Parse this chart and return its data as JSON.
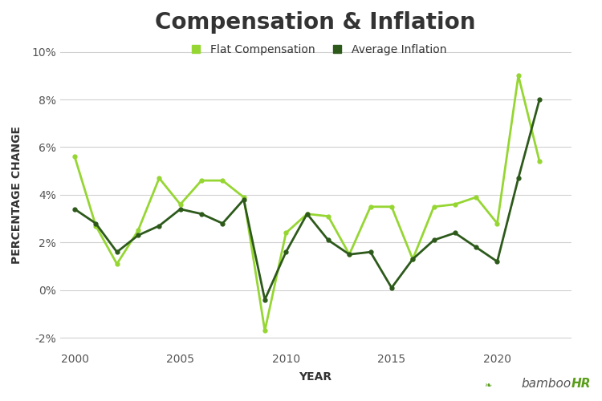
{
  "title": "Compensation & Inflation",
  "xlabel": "YEAR",
  "ylabel": "PERCENTAGE CHANGE",
  "flat_compensation": {
    "years": [
      2000,
      2001,
      2002,
      2003,
      2004,
      2005,
      2006,
      2007,
      2008,
      2009,
      2010,
      2011,
      2012,
      2013,
      2014,
      2015,
      2016,
      2017,
      2018,
      2019,
      2020,
      2021,
      2022
    ],
    "values": [
      5.6,
      2.7,
      1.1,
      2.5,
      4.7,
      3.6,
      4.6,
      4.6,
      3.9,
      -1.7,
      2.4,
      3.2,
      3.1,
      1.5,
      3.5,
      3.5,
      1.3,
      3.5,
      3.6,
      3.9,
      2.8,
      9.0,
      5.4
    ]
  },
  "average_inflation": {
    "years": [
      2000,
      2001,
      2002,
      2003,
      2004,
      2005,
      2006,
      2007,
      2008,
      2009,
      2010,
      2011,
      2012,
      2013,
      2014,
      2015,
      2016,
      2017,
      2018,
      2019,
      2020,
      2021,
      2022
    ],
    "values": [
      3.4,
      2.8,
      1.6,
      2.3,
      2.7,
      3.4,
      3.2,
      2.8,
      3.8,
      -0.4,
      1.6,
      3.2,
      2.1,
      1.5,
      1.6,
      0.1,
      1.3,
      2.1,
      2.4,
      1.8,
      1.2,
      4.7,
      8.0
    ]
  },
  "comp_color": "#96d633",
  "inflation_color": "#2d5a1b",
  "ylim": [
    -2.5,
    10.5
  ],
  "yticks": [
    -2,
    0,
    2,
    4,
    6,
    8,
    10
  ],
  "xticks": [
    2000,
    2005,
    2010,
    2015,
    2020
  ],
  "xlim": [
    1999.3,
    2023.5
  ],
  "background_color": "#ffffff",
  "grid_color": "#d0d0d0",
  "title_fontsize": 20,
  "title_color": "#333333",
  "axis_label_fontsize": 10,
  "tick_fontsize": 10,
  "tick_color": "#555555",
  "legend_fontsize": 10,
  "legend_text_color": "#333333",
  "watermark_bamboo": "bamboo",
  "watermark_hr": "HR",
  "watermark_color_bamboo": "#555555",
  "watermark_color_hr": "#5a9e1a",
  "watermark_fontsize": 11
}
